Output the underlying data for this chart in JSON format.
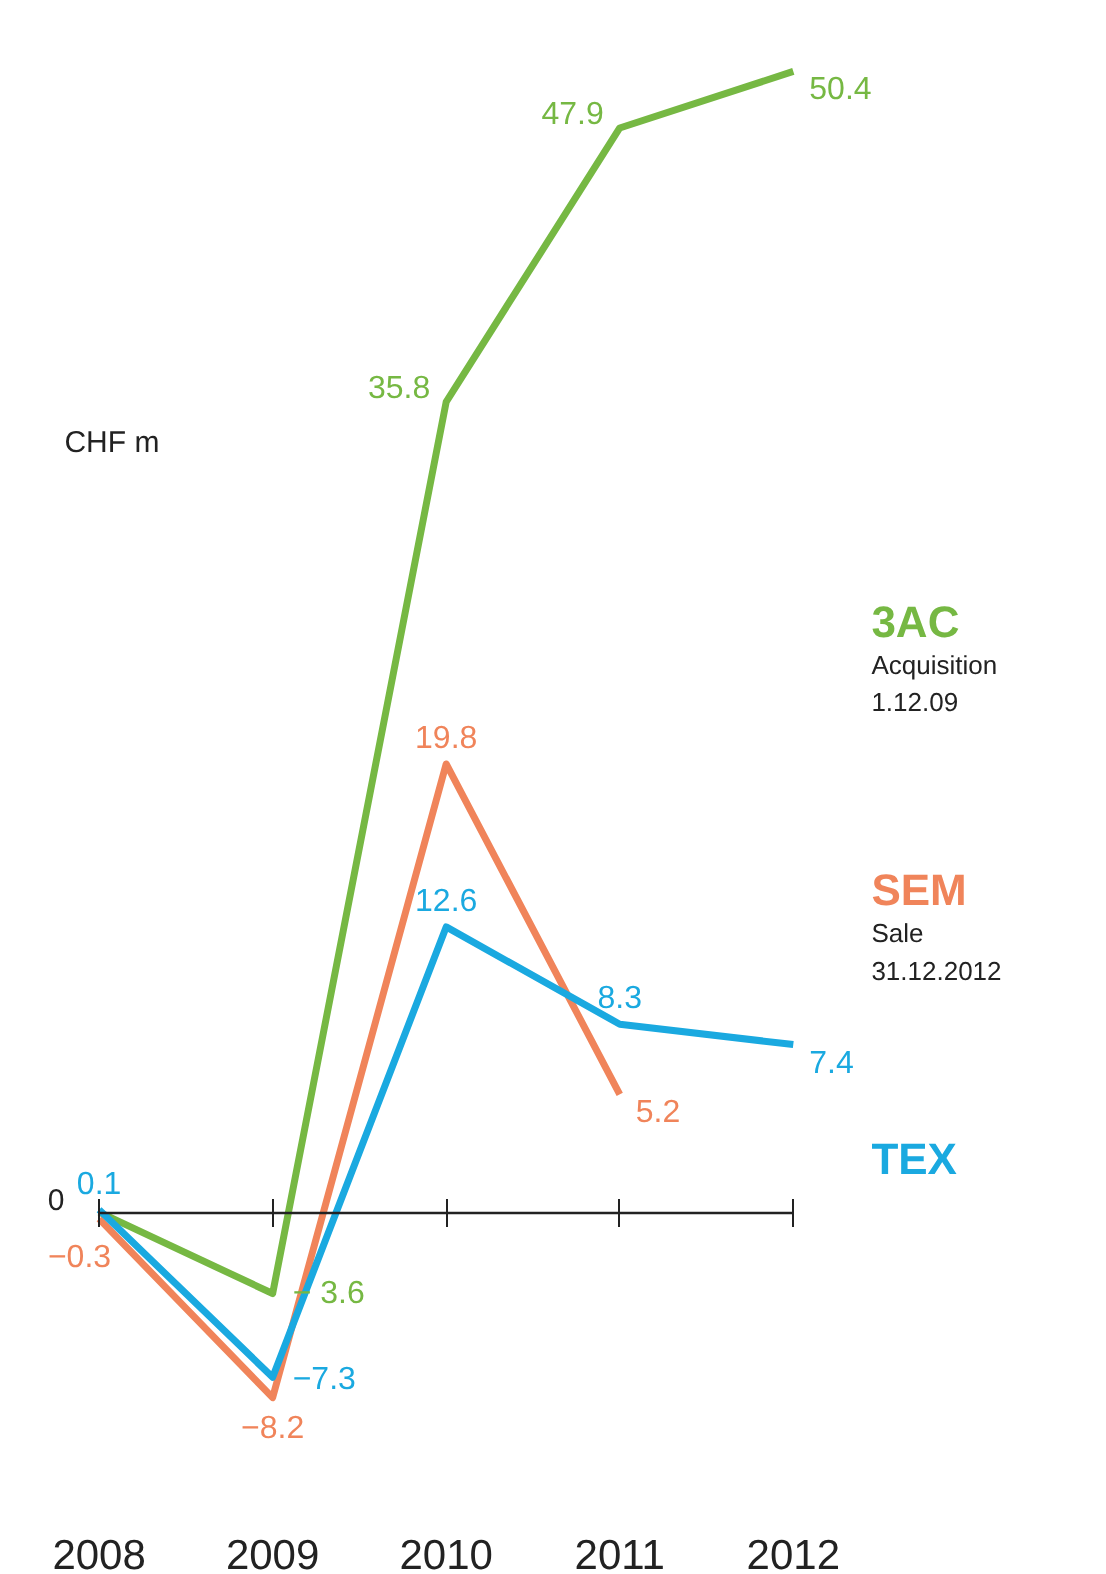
{
  "chart_data": {
    "type": "line",
    "ylabel": "CHF m",
    "categories": [
      "2008",
      "2009",
      "2010",
      "2011",
      "2012"
    ],
    "series": [
      {
        "name": "3AC",
        "color": "#76b843",
        "values": [
          0,
          -3.6,
          35.8,
          47.9,
          50.4
        ],
        "value_labels": [
          null,
          "− 3.6",
          "35.8",
          "47.9",
          "50.4"
        ]
      },
      {
        "name": "SEM",
        "color": "#f0845a",
        "values": [
          -0.3,
          -8.2,
          19.8,
          5.2,
          null
        ],
        "value_labels": [
          "−0.3",
          "−8.2",
          "19.8",
          "5.2",
          null
        ]
      },
      {
        "name": "TEX",
        "color": "#1aa9e0",
        "values": [
          0.1,
          -7.3,
          12.6,
          8.3,
          7.4
        ],
        "value_labels": [
          "0.1",
          "−7.3",
          "12.6",
          "8.3",
          "7.4"
        ]
      }
    ],
    "annotations": [
      "Acquisition\n1.12.09",
      "Sale\n31.12.2012",
      "0"
    ],
    "legend": "right",
    "grid": false,
    "marker": "none",
    "line_style": "solid"
  }
}
